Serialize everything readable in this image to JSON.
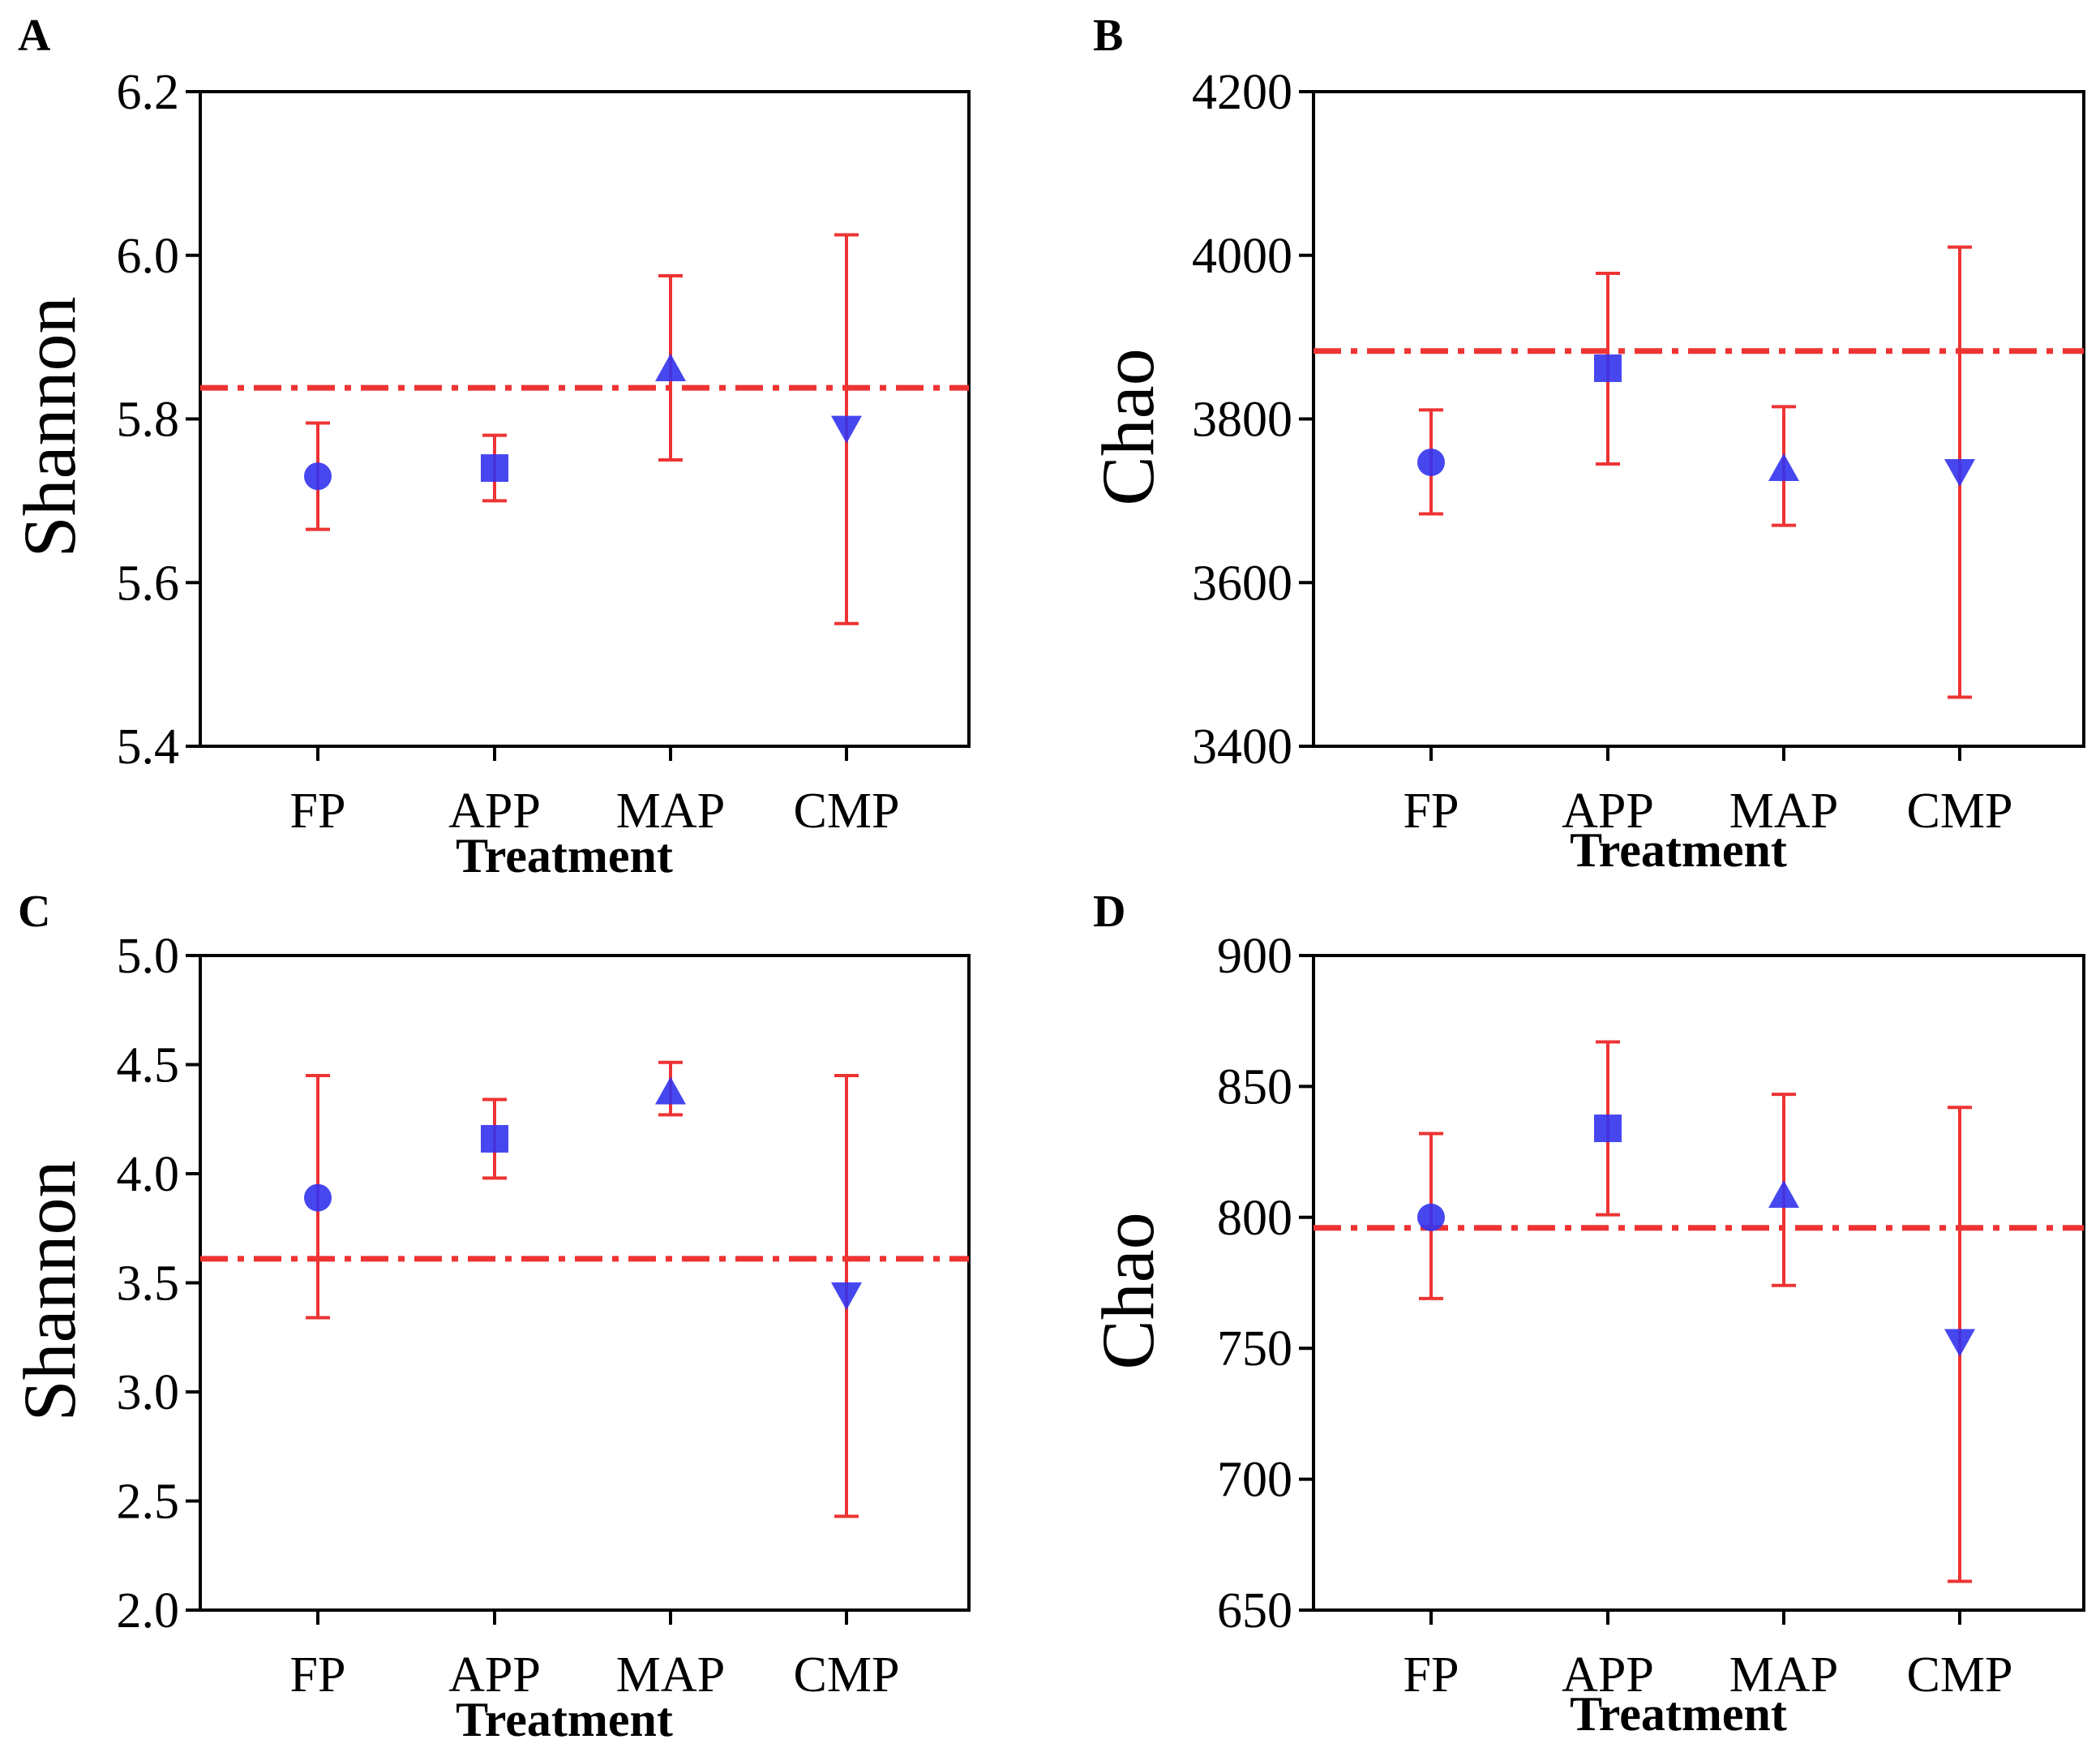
{
  "colors": {
    "marker": "#3333ee",
    "errorbar": "#ee3333",
    "refline": "#ee3333",
    "axis": "#000000"
  },
  "chart_data": [
    {
      "panel": "A",
      "type": "scatter",
      "categories": [
        "FP",
        "APP",
        "MAP",
        "CMP"
      ],
      "markers": [
        "circle-icon",
        "square-icon",
        "triangle-up-icon",
        "triangle-down-icon"
      ],
      "values": [
        5.73,
        5.74,
        5.86,
        5.79
      ],
      "error_low": [
        5.665,
        5.7,
        5.75,
        5.55
      ],
      "error_high": [
        5.795,
        5.78,
        5.975,
        6.025
      ],
      "reference_line": 5.838,
      "xlabel": "Treatment",
      "ylabel": "Shannon",
      "ylim": [
        5.4,
        6.2
      ],
      "yticks": [
        "5.4",
        "5.6",
        "5.8",
        "6.0",
        "6.2"
      ],
      "ytick_values": [
        5.4,
        5.6,
        5.8,
        6.0,
        6.2
      ],
      "grid": false
    },
    {
      "panel": "B",
      "type": "scatter",
      "categories": [
        "FP",
        "APP",
        "MAP",
        "CMP"
      ],
      "markers": [
        "circle-icon",
        "square-icon",
        "triangle-up-icon",
        "triangle-down-icon"
      ],
      "values": [
        3747,
        3862,
        3738,
        3737
      ],
      "error_low": [
        3684,
        3745,
        3670,
        3460
      ],
      "error_high": [
        3811,
        3978,
        3815,
        4010
      ],
      "reference_line": 3883,
      "xlabel": "Treatment",
      "ylabel": "Chao",
      "ylim": [
        3400,
        4200
      ],
      "yticks": [
        "3400",
        "3600",
        "3800",
        "4000",
        "4200"
      ],
      "ytick_values": [
        3400,
        3600,
        3800,
        4000,
        4200
      ],
      "grid": false
    },
    {
      "panel": "C",
      "type": "scatter",
      "categories": [
        "FP",
        "APP",
        "MAP",
        "CMP"
      ],
      "markers": [
        "circle-icon",
        "square-icon",
        "triangle-up-icon",
        "triangle-down-icon"
      ],
      "values": [
        3.89,
        4.16,
        4.37,
        3.45
      ],
      "error_low": [
        3.34,
        3.98,
        4.27,
        2.43
      ],
      "error_high": [
        4.45,
        4.34,
        4.51,
        4.45
      ],
      "reference_line": 3.61,
      "xlabel": "Treatment",
      "ylabel": "Shannon",
      "ylim": [
        2.0,
        5.0
      ],
      "yticks": [
        "2.0",
        "2.5",
        "3.0",
        "3.5",
        "4.0",
        "4.5",
        "5.0"
      ],
      "ytick_values": [
        2.0,
        2.5,
        3.0,
        3.5,
        4.0,
        4.5,
        5.0
      ],
      "grid": false
    },
    {
      "panel": "D",
      "type": "scatter",
      "categories": [
        "FP",
        "APP",
        "MAP",
        "CMP"
      ],
      "markers": [
        "circle-icon",
        "square-icon",
        "triangle-up-icon",
        "triangle-down-icon"
      ],
      "values": [
        800,
        834,
        808,
        753
      ],
      "error_low": [
        769,
        801,
        774,
        661
      ],
      "error_high": [
        832,
        867,
        847,
        842
      ],
      "reference_line": 796,
      "xlabel": "Treatment",
      "ylabel": "Chao",
      "ylim": [
        650,
        900
      ],
      "yticks": [
        "650",
        "700",
        "750",
        "800",
        "850",
        "900"
      ],
      "ytick_values": [
        650,
        700,
        750,
        800,
        850,
        900
      ],
      "grid": false
    }
  ]
}
